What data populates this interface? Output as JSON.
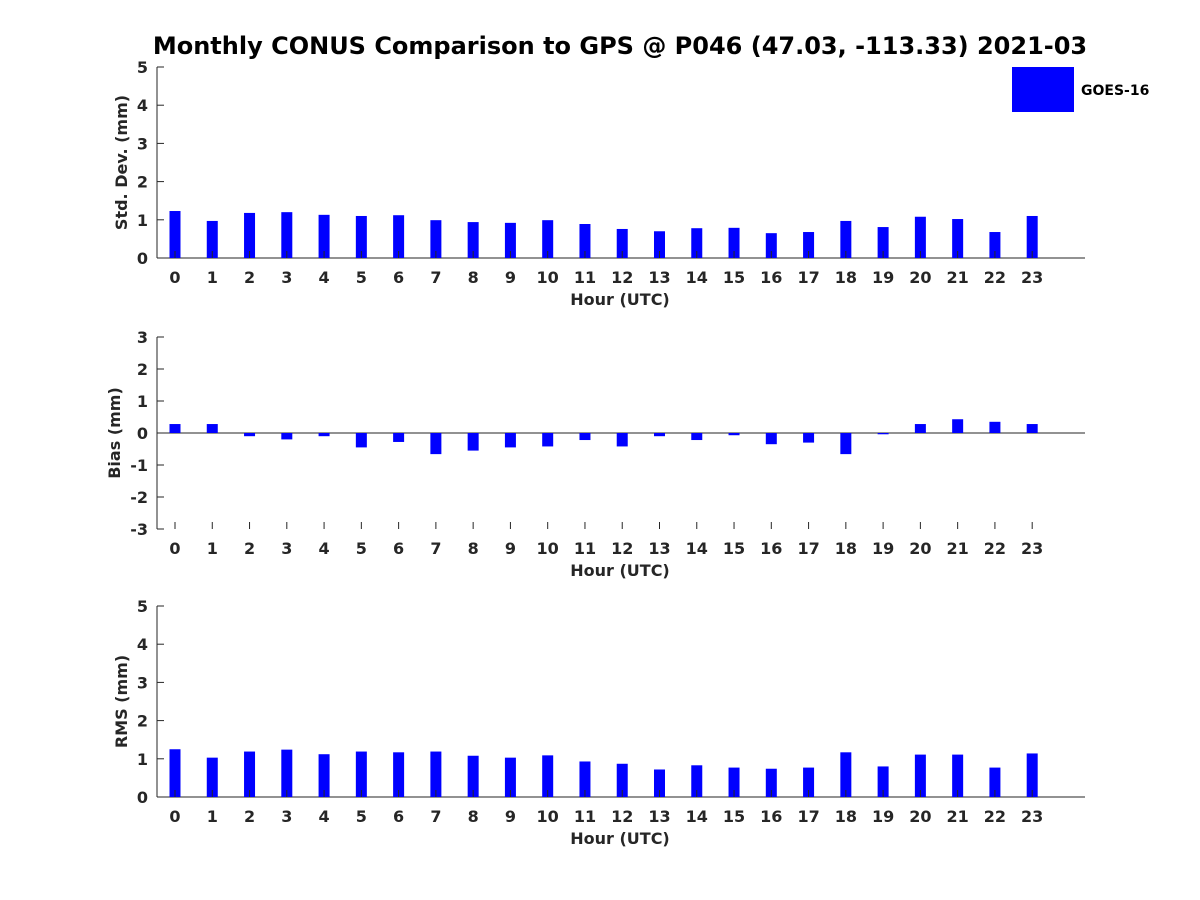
{
  "title": "Monthly CONUS Comparison to GPS @ P046 (47.03, -113.33) 2021-03",
  "legend": {
    "label": "GOES-16",
    "color": "#0000ff",
    "placement": "top-right"
  },
  "chart_data": [
    {
      "type": "bar",
      "xlabel": "Hour (UTC)",
      "ylabel": "Std. Dev. (mm)",
      "ylim": [
        0,
        5
      ],
      "yticks": [
        0,
        1,
        2,
        3,
        4,
        5
      ],
      "categories": [
        "0",
        "1",
        "2",
        "3",
        "4",
        "5",
        "6",
        "7",
        "8",
        "9",
        "10",
        "11",
        "12",
        "13",
        "14",
        "15",
        "16",
        "17",
        "18",
        "19",
        "20",
        "21",
        "22",
        "23"
      ],
      "series": [
        {
          "name": "GOES-16",
          "values": [
            1.23,
            0.97,
            1.18,
            1.2,
            1.13,
            1.1,
            1.12,
            0.99,
            0.94,
            0.92,
            0.99,
            0.89,
            0.76,
            0.7,
            0.78,
            0.79,
            0.65,
            0.68,
            0.97,
            0.81,
            1.08,
            1.02,
            0.68,
            1.1
          ]
        }
      ]
    },
    {
      "type": "bar",
      "xlabel": "Hour (UTC)",
      "ylabel": "Bias (mm)",
      "ylim": [
        -3,
        3
      ],
      "yticks": [
        -3,
        -2,
        -1,
        0,
        1,
        2,
        3
      ],
      "categories": [
        "0",
        "1",
        "2",
        "3",
        "4",
        "5",
        "6",
        "7",
        "8",
        "9",
        "10",
        "11",
        "12",
        "13",
        "14",
        "15",
        "16",
        "17",
        "18",
        "19",
        "20",
        "21",
        "22",
        "23"
      ],
      "series": [
        {
          "name": "GOES-16",
          "values": [
            0.28,
            0.28,
            -0.1,
            -0.2,
            -0.1,
            -0.45,
            -0.28,
            -0.66,
            -0.55,
            -0.45,
            -0.42,
            -0.22,
            -0.42,
            -0.1,
            -0.22,
            -0.07,
            -0.35,
            -0.3,
            -0.66,
            -0.04,
            0.28,
            0.43,
            0.35,
            0.28
          ]
        }
      ]
    },
    {
      "type": "bar",
      "xlabel": "Hour (UTC)",
      "ylabel": "RMS (mm)",
      "ylim": [
        0,
        5
      ],
      "yticks": [
        0,
        1,
        2,
        3,
        4,
        5
      ],
      "categories": [
        "0",
        "1",
        "2",
        "3",
        "4",
        "5",
        "6",
        "7",
        "8",
        "9",
        "10",
        "11",
        "12",
        "13",
        "14",
        "15",
        "16",
        "17",
        "18",
        "19",
        "20",
        "21",
        "22",
        "23"
      ],
      "series": [
        {
          "name": "GOES-16",
          "values": [
            1.25,
            1.03,
            1.19,
            1.24,
            1.12,
            1.19,
            1.17,
            1.19,
            1.08,
            1.03,
            1.09,
            0.93,
            0.87,
            0.72,
            0.83,
            0.77,
            0.74,
            0.77,
            1.17,
            0.8,
            1.11,
            1.11,
            0.77,
            1.14
          ]
        }
      ]
    }
  ]
}
